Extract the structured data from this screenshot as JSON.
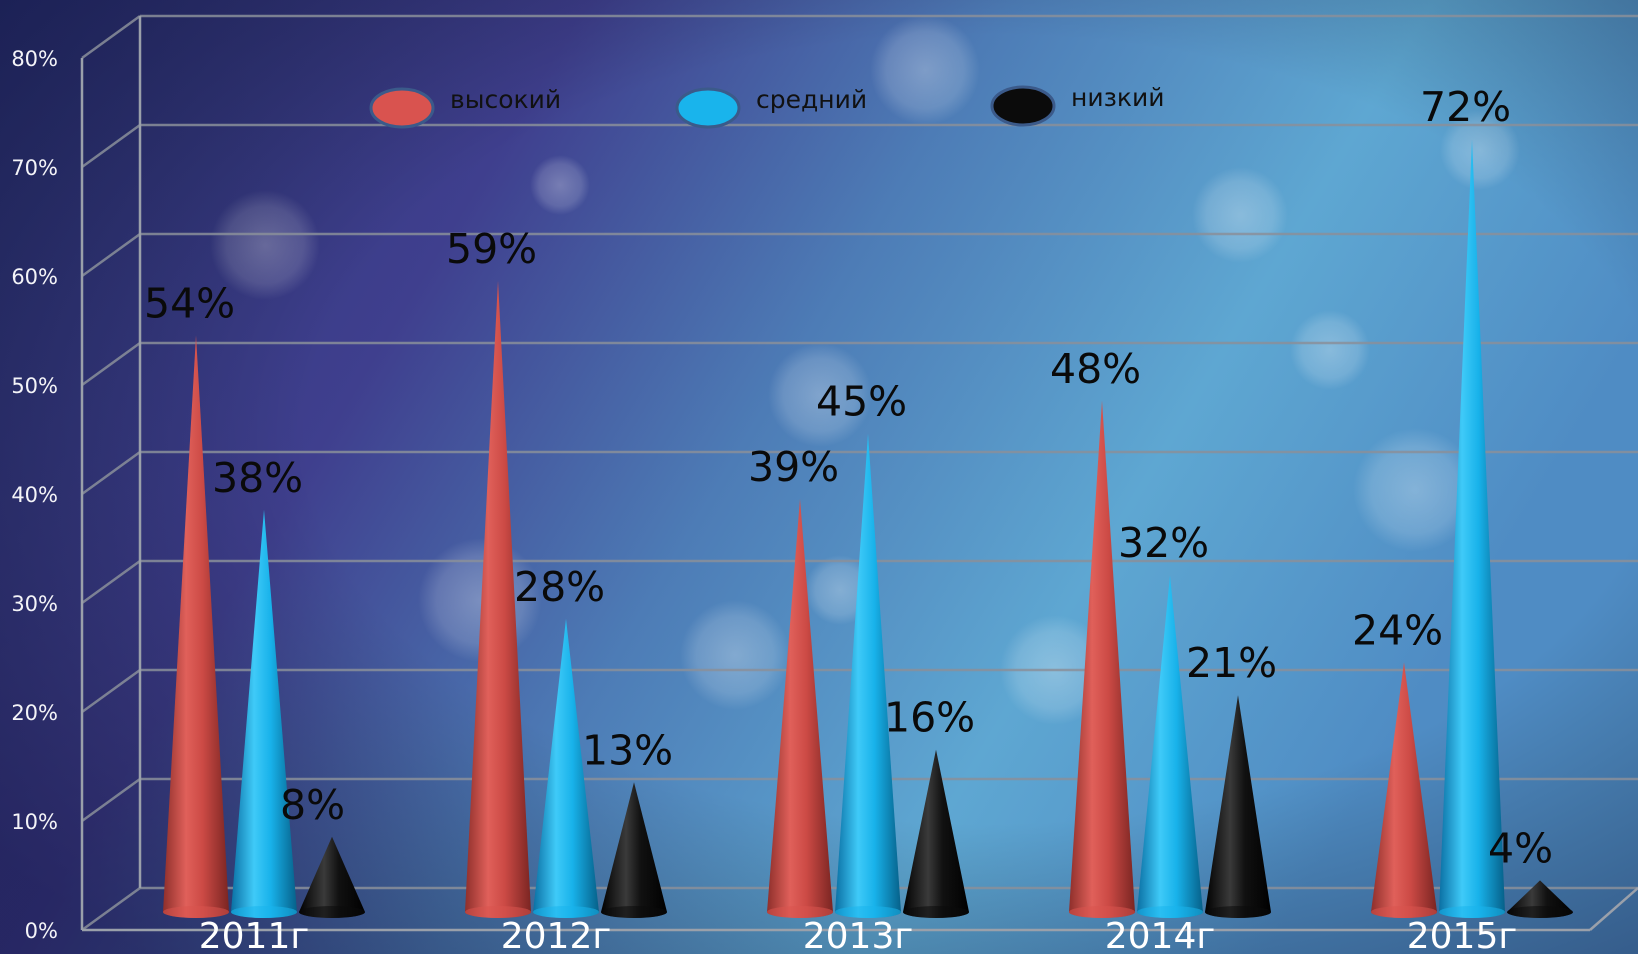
{
  "chart_data": {
    "type": "bar",
    "categories": [
      "2011г",
      "2012г",
      "2013г",
      "2014г",
      "2015г"
    ],
    "series": [
      {
        "name": "высокий",
        "color": "#d9534f",
        "values": [
          54,
          59,
          39,
          48,
          24
        ],
        "labels": [
          "54%",
          "59%",
          "39%",
          "48%",
          "24%"
        ]
      },
      {
        "name": "средний",
        "color": "#19b4ec",
        "values": [
          38,
          28,
          45,
          32,
          72
        ],
        "labels": [
          "38%",
          "28%",
          "45%",
          "32%",
          "72%"
        ]
      },
      {
        "name": "низкий",
        "color": "#0b0b0b",
        "values": [
          8,
          13,
          16,
          21,
          4
        ],
        "labels": [
          "8%",
          "13%",
          "16%",
          "21%",
          "4%"
        ]
      }
    ],
    "ylim": [
      0,
      80
    ],
    "yticks": [
      "0%",
      "10%",
      "20%",
      "30%",
      "40%",
      "50%",
      "60%",
      "70%",
      "80%"
    ],
    "grid": true,
    "legend_position": "top",
    "title": "",
    "xlabel": "",
    "ylabel": ""
  }
}
